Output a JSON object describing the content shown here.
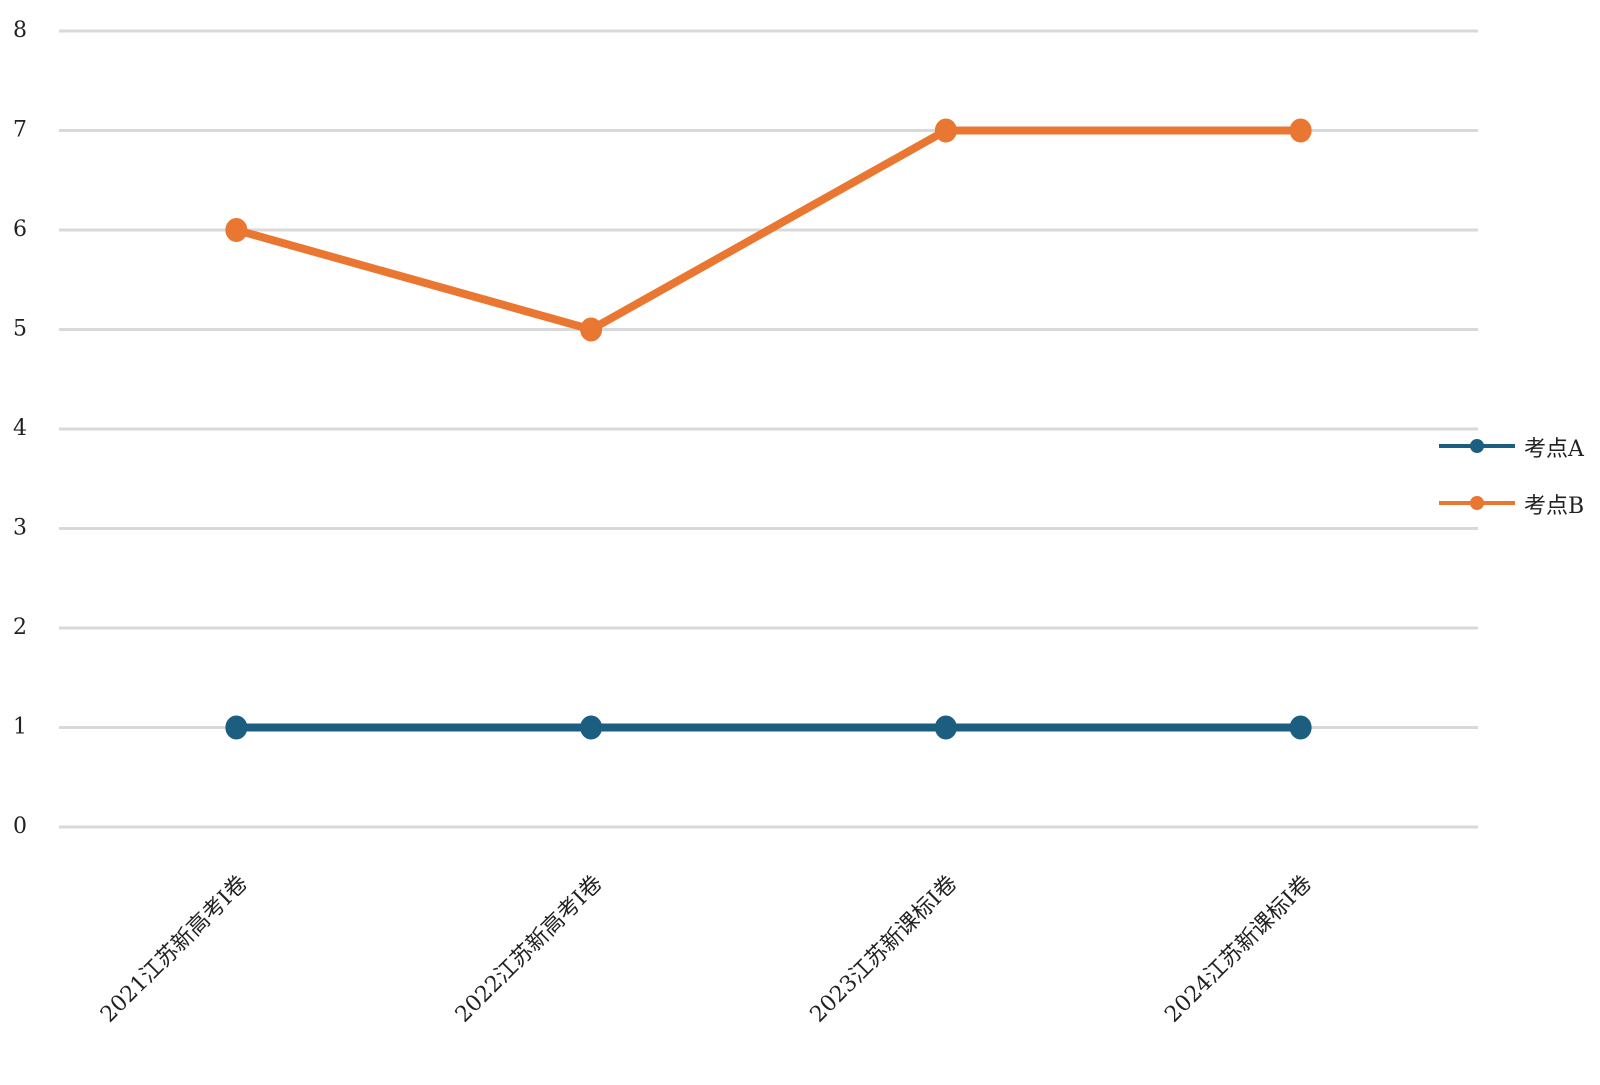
{
  "chart_data": {
    "type": "line",
    "categories": [
      "2021江苏新高考I卷",
      "2022江苏新高考I卷",
      "2023江苏新课标I卷",
      "2024江苏新课标I卷"
    ],
    "series": [
      {
        "name": "考点A",
        "color": "#1b5e80",
        "values": [
          1,
          1,
          1,
          1
        ]
      },
      {
        "name": "考点B",
        "color": "#e97732",
        "values": [
          6,
          5,
          7,
          7
        ]
      }
    ],
    "ylim": [
      0,
      8
    ],
    "yticks": [
      0,
      1,
      2,
      3,
      4,
      5,
      6,
      7,
      8
    ],
    "grid": true,
    "legend": "right"
  }
}
